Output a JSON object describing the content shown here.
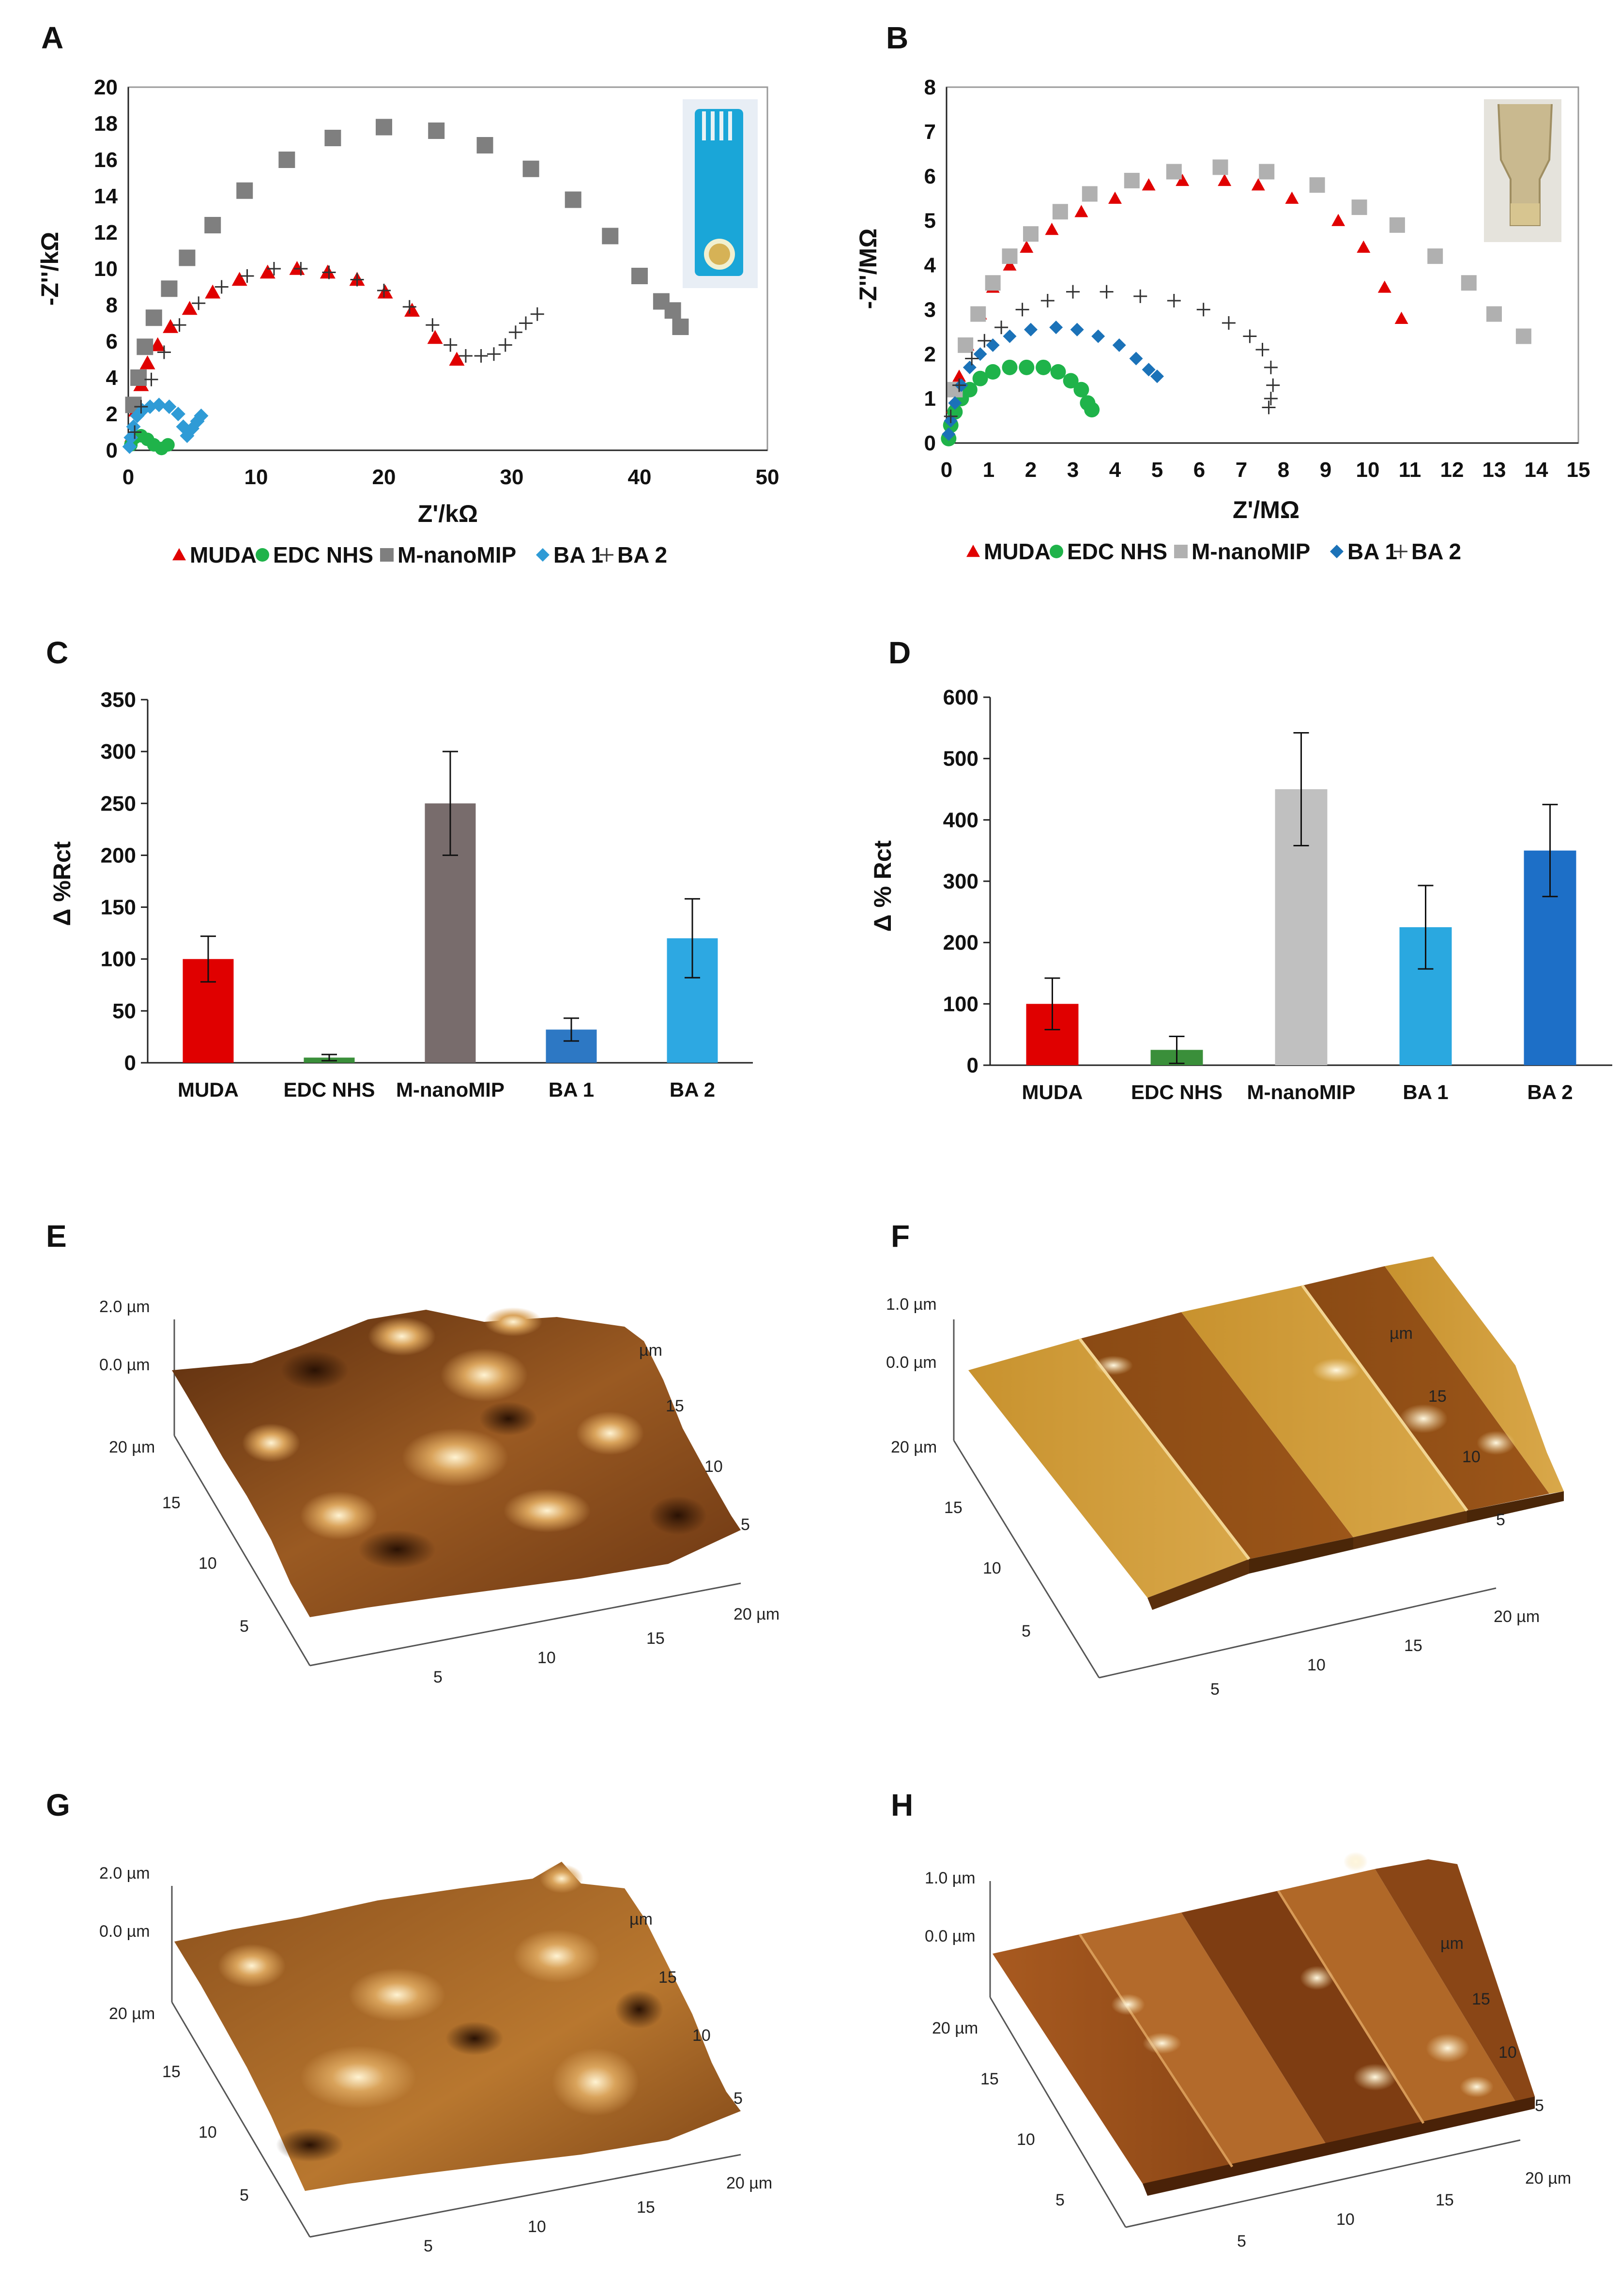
{
  "panel_labels": [
    "A",
    "B",
    "C",
    "D",
    "E",
    "F",
    "G",
    "H"
  ],
  "legend_series": [
    "MUDA",
    "EDC NHS",
    "M-nanoMIP",
    "BA 1",
    "BA 2"
  ],
  "colors": {
    "muda": "#e00000",
    "edc": "#1fb34a",
    "mip_a": "#7f7f7f",
    "mip_b": "#b0b0b0",
    "ba1": "#2f9bd6",
    "ba1_d": "#1b72b8",
    "ba2_marker": "#333333",
    "bar_c": [
      "#e00000",
      "#3a8f3a",
      "#786c6c",
      "#2d78c4",
      "#2da8e2"
    ],
    "bar_d": [
      "#e00000",
      "#3a8f3a",
      "#c0c0c0",
      "#2aa8e0",
      "#1d6fc7"
    ]
  },
  "chart_data": [
    {
      "panel": "A",
      "type": "scatter",
      "xlabel": "Z'/kΩ",
      "ylabel": "-Z''/kΩ",
      "xlim": [
        0,
        50
      ],
      "ylim": [
        0,
        20
      ],
      "xticks": [
        "0",
        "10",
        "20",
        "30",
        "40",
        "50"
      ],
      "yticks": [
        "0",
        "2",
        "4",
        "6",
        "8",
        "10",
        "12",
        "14",
        "16",
        "18",
        "20"
      ],
      "series": [
        {
          "name": "MUDA",
          "marker": "triangle",
          "points": [
            [
              0.3,
              0.8
            ],
            [
              0.6,
              2.2
            ],
            [
              1.0,
              3.6
            ],
            [
              1.5,
              4.8
            ],
            [
              2.3,
              5.8
            ],
            [
              3.3,
              6.8
            ],
            [
              4.8,
              7.8
            ],
            [
              6.6,
              8.7
            ],
            [
              8.7,
              9.4
            ],
            [
              10.9,
              9.8
            ],
            [
              13.2,
              10.0
            ],
            [
              15.6,
              9.8
            ],
            [
              17.9,
              9.4
            ],
            [
              20.1,
              8.7
            ],
            [
              22.2,
              7.7
            ],
            [
              24.0,
              6.2
            ],
            [
              25.7,
              5.0
            ]
          ]
        },
        {
          "name": "EDC NHS",
          "marker": "circle",
          "points": [
            [
              0.2,
              0.3
            ],
            [
              0.5,
              0.7
            ],
            [
              1.0,
              0.8
            ],
            [
              1.5,
              0.6
            ],
            [
              2.0,
              0.3
            ],
            [
              2.6,
              0.1
            ],
            [
              3.1,
              0.3
            ]
          ]
        },
        {
          "name": "M-nanoMIP",
          "marker": "square",
          "points": [
            [
              0.4,
              2.5
            ],
            [
              0.8,
              4.0
            ],
            [
              1.3,
              5.7
            ],
            [
              2.0,
              7.3
            ],
            [
              3.2,
              8.9
            ],
            [
              4.6,
              10.6
            ],
            [
              6.6,
              12.4
            ],
            [
              9.1,
              14.3
            ],
            [
              12.4,
              16.0
            ],
            [
              16.0,
              17.2
            ],
            [
              20.0,
              17.8
            ],
            [
              24.1,
              17.6
            ],
            [
              27.9,
              16.8
            ],
            [
              31.5,
              15.5
            ],
            [
              34.8,
              13.8
            ],
            [
              37.7,
              11.8
            ],
            [
              40.0,
              9.6
            ],
            [
              41.7,
              8.2
            ],
            [
              42.6,
              7.7
            ],
            [
              43.2,
              6.8
            ]
          ]
        },
        {
          "name": "BA 1",
          "marker": "diamond",
          "points": [
            [
              0.1,
              0.2
            ],
            [
              0.2,
              0.7
            ],
            [
              0.4,
              1.3
            ],
            [
              0.7,
              1.9
            ],
            [
              1.1,
              2.2
            ],
            [
              1.7,
              2.4
            ],
            [
              2.4,
              2.5
            ],
            [
              3.2,
              2.4
            ],
            [
              3.9,
              2.0
            ],
            [
              4.3,
              1.3
            ],
            [
              4.6,
              0.8
            ],
            [
              5.0,
              1.2
            ],
            [
              5.4,
              1.6
            ],
            [
              5.7,
              1.9
            ]
          ]
        },
        {
          "name": "BA 2",
          "marker": "plus",
          "points": [
            [
              0.5,
              1.0
            ],
            [
              1.0,
              2.4
            ],
            [
              1.8,
              3.9
            ],
            [
              2.8,
              5.4
            ],
            [
              4.0,
              6.9
            ],
            [
              5.5,
              8.1
            ],
            [
              7.3,
              9.0
            ],
            [
              9.3,
              9.6
            ],
            [
              11.4,
              10.0
            ],
            [
              13.5,
              10.0
            ],
            [
              15.7,
              9.8
            ],
            [
              17.9,
              9.4
            ],
            [
              20.0,
              8.8
            ],
            [
              22.0,
              7.9
            ],
            [
              23.8,
              6.9
            ],
            [
              25.2,
              5.8
            ],
            [
              26.4,
              5.2
            ],
            [
              27.6,
              5.2
            ],
            [
              28.6,
              5.3
            ],
            [
              29.5,
              5.8
            ],
            [
              30.3,
              6.5
            ],
            [
              31.1,
              7.0
            ],
            [
              32.0,
              7.5
            ]
          ]
        }
      ]
    },
    {
      "panel": "B",
      "type": "scatter",
      "xlabel": "Z'/MΩ",
      "ylabel": "-Z''/MΩ",
      "xlim": [
        0,
        15
      ],
      "ylim": [
        0,
        8
      ],
      "xticks": [
        "0",
        "1",
        "2",
        "3",
        "4",
        "5",
        "6",
        "7",
        "8",
        "9",
        "10",
        "11",
        "12",
        "13",
        "14",
        "15"
      ],
      "yticks": [
        "0",
        "1",
        "2",
        "3",
        "4",
        "5",
        "6",
        "7",
        "8"
      ],
      "series": [
        {
          "name": "MUDA",
          "marker": "triangle",
          "points": [
            [
              0.15,
              0.8
            ],
            [
              0.3,
              1.5
            ],
            [
              0.5,
              2.2
            ],
            [
              0.8,
              2.9
            ],
            [
              1.1,
              3.5
            ],
            [
              1.5,
              4.0
            ],
            [
              1.9,
              4.4
            ],
            [
              2.5,
              4.8
            ],
            [
              3.2,
              5.2
            ],
            [
              4.0,
              5.5
            ],
            [
              4.8,
              5.8
            ],
            [
              5.6,
              5.9
            ],
            [
              6.6,
              5.9
            ],
            [
              7.4,
              5.8
            ],
            [
              8.2,
              5.5
            ],
            [
              9.3,
              5.0
            ],
            [
              9.9,
              4.4
            ],
            [
              10.4,
              3.5
            ],
            [
              10.8,
              2.8
            ]
          ]
        },
        {
          "name": "EDC NHS",
          "marker": "circle",
          "points": [
            [
              0.05,
              0.1
            ],
            [
              0.1,
              0.4
            ],
            [
              0.2,
              0.7
            ],
            [
              0.35,
              1.0
            ],
            [
              0.55,
              1.2
            ],
            [
              0.8,
              1.45
            ],
            [
              1.1,
              1.6
            ],
            [
              1.5,
              1.7
            ],
            [
              1.9,
              1.7
            ],
            [
              2.3,
              1.7
            ],
            [
              2.65,
              1.6
            ],
            [
              2.95,
              1.4
            ],
            [
              3.2,
              1.2
            ],
            [
              3.35,
              0.9
            ],
            [
              3.45,
              0.75
            ]
          ]
        },
        {
          "name": "M-nanoMIP",
          "marker": "square",
          "points": [
            [
              0.2,
              1.2
            ],
            [
              0.45,
              2.2
            ],
            [
              0.75,
              2.9
            ],
            [
              1.1,
              3.6
            ],
            [
              1.5,
              4.2
            ],
            [
              2.0,
              4.7
            ],
            [
              2.7,
              5.2
            ],
            [
              3.4,
              5.6
            ],
            [
              4.4,
              5.9
            ],
            [
              5.4,
              6.1
            ],
            [
              6.5,
              6.2
            ],
            [
              7.6,
              6.1
            ],
            [
              8.8,
              5.8
            ],
            [
              9.8,
              5.3
            ],
            [
              10.7,
              4.9
            ],
            [
              11.6,
              4.2
            ],
            [
              12.4,
              3.6
            ],
            [
              13.0,
              2.9
            ],
            [
              13.7,
              2.4
            ]
          ]
        },
        {
          "name": "BA 1",
          "marker": "diamond",
          "points": [
            [
              0.05,
              0.2
            ],
            [
              0.1,
              0.5
            ],
            [
              0.2,
              0.9
            ],
            [
              0.35,
              1.3
            ],
            [
              0.55,
              1.7
            ],
            [
              0.8,
              2.0
            ],
            [
              1.1,
              2.2
            ],
            [
              1.5,
              2.4
            ],
            [
              2.0,
              2.55
            ],
            [
              2.6,
              2.6
            ],
            [
              3.1,
              2.55
            ],
            [
              3.6,
              2.4
            ],
            [
              4.1,
              2.2
            ],
            [
              4.5,
              1.9
            ],
            [
              4.8,
              1.65
            ],
            [
              5.0,
              1.5
            ]
          ]
        },
        {
          "name": "BA 2",
          "marker": "plus",
          "points": [
            [
              0.1,
              0.6
            ],
            [
              0.3,
              1.3
            ],
            [
              0.6,
              1.9
            ],
            [
              0.9,
              2.3
            ],
            [
              1.3,
              2.6
            ],
            [
              1.8,
              3.0
            ],
            [
              2.4,
              3.2
            ],
            [
              3.0,
              3.4
            ],
            [
              3.8,
              3.4
            ],
            [
              4.6,
              3.3
            ],
            [
              5.4,
              3.2
            ],
            [
              6.1,
              3.0
            ],
            [
              6.7,
              2.7
            ],
            [
              7.2,
              2.4
            ],
            [
              7.5,
              2.1
            ],
            [
              7.7,
              1.7
            ],
            [
              7.75,
              1.3
            ],
            [
              7.7,
              1.0
            ],
            [
              7.65,
              0.8
            ]
          ]
        }
      ]
    },
    {
      "panel": "C",
      "type": "bar",
      "ylabel": "Δ %Rct",
      "ylim": [
        0,
        350
      ],
      "yticks": [
        "0",
        "50",
        "100",
        "150",
        "200",
        "250",
        "300",
        "350"
      ],
      "categories": [
        "MUDA",
        "EDC NHS",
        "M-nanoMIP",
        "BA 1",
        "BA 2"
      ],
      "values": [
        100,
        5,
        250,
        32,
        120
      ],
      "errors": [
        22,
        3,
        50,
        11,
        38
      ]
    },
    {
      "panel": "D",
      "type": "bar",
      "ylabel": "Δ % Rct",
      "ylim": [
        0,
        600
      ],
      "yticks": [
        "0",
        "100",
        "200",
        "300",
        "400",
        "500",
        "600"
      ],
      "categories": [
        "MUDA",
        "EDC NHS",
        "M-nanoMIP",
        "BA 1",
        "BA 2"
      ],
      "values": [
        100,
        25,
        450,
        225,
        350
      ],
      "errors": [
        42,
        22,
        92,
        68,
        75
      ]
    }
  ],
  "afm": {
    "E": {
      "z_top": "2.0 µm",
      "z_zero": "0.0 µm",
      "depth_far": "20 µm",
      "depth_ticks": [
        "15",
        "10",
        "5"
      ],
      "front_ticks": [
        "5",
        "10",
        "15"
      ],
      "front_end": "20 µm",
      "right_unit": "µm",
      "right_ticks": [
        "15",
        "10",
        "5"
      ]
    },
    "F": {
      "z_top": "1.0 µm",
      "z_zero": "0.0 µm",
      "depth_far": "20 µm",
      "depth_ticks": [
        "15",
        "10",
        "5"
      ],
      "front_ticks": [
        "5",
        "10",
        "15"
      ],
      "front_end": "20 µm",
      "right_unit": "µm",
      "right_ticks": [
        "15",
        "10",
        "5"
      ]
    },
    "G": {
      "z_top": "2.0 µm",
      "z_zero": "0.0 µm",
      "depth_far": "20 µm",
      "depth_ticks": [
        "15",
        "10",
        "5"
      ],
      "front_ticks": [
        "5",
        "10",
        "15"
      ],
      "front_end": "20 µm",
      "right_unit": "µm",
      "right_ticks": [
        "15",
        "10",
        "5"
      ]
    },
    "H": {
      "z_top": "1.0 µm",
      "z_zero": "0.0 µm",
      "depth_far": "20 µm",
      "depth_ticks": [
        "15",
        "10",
        "5"
      ],
      "front_ticks": [
        "5",
        "10",
        "15"
      ],
      "front_end": "20 µm",
      "right_unit": "µm",
      "right_ticks": [
        "15",
        "10",
        "5"
      ]
    }
  }
}
